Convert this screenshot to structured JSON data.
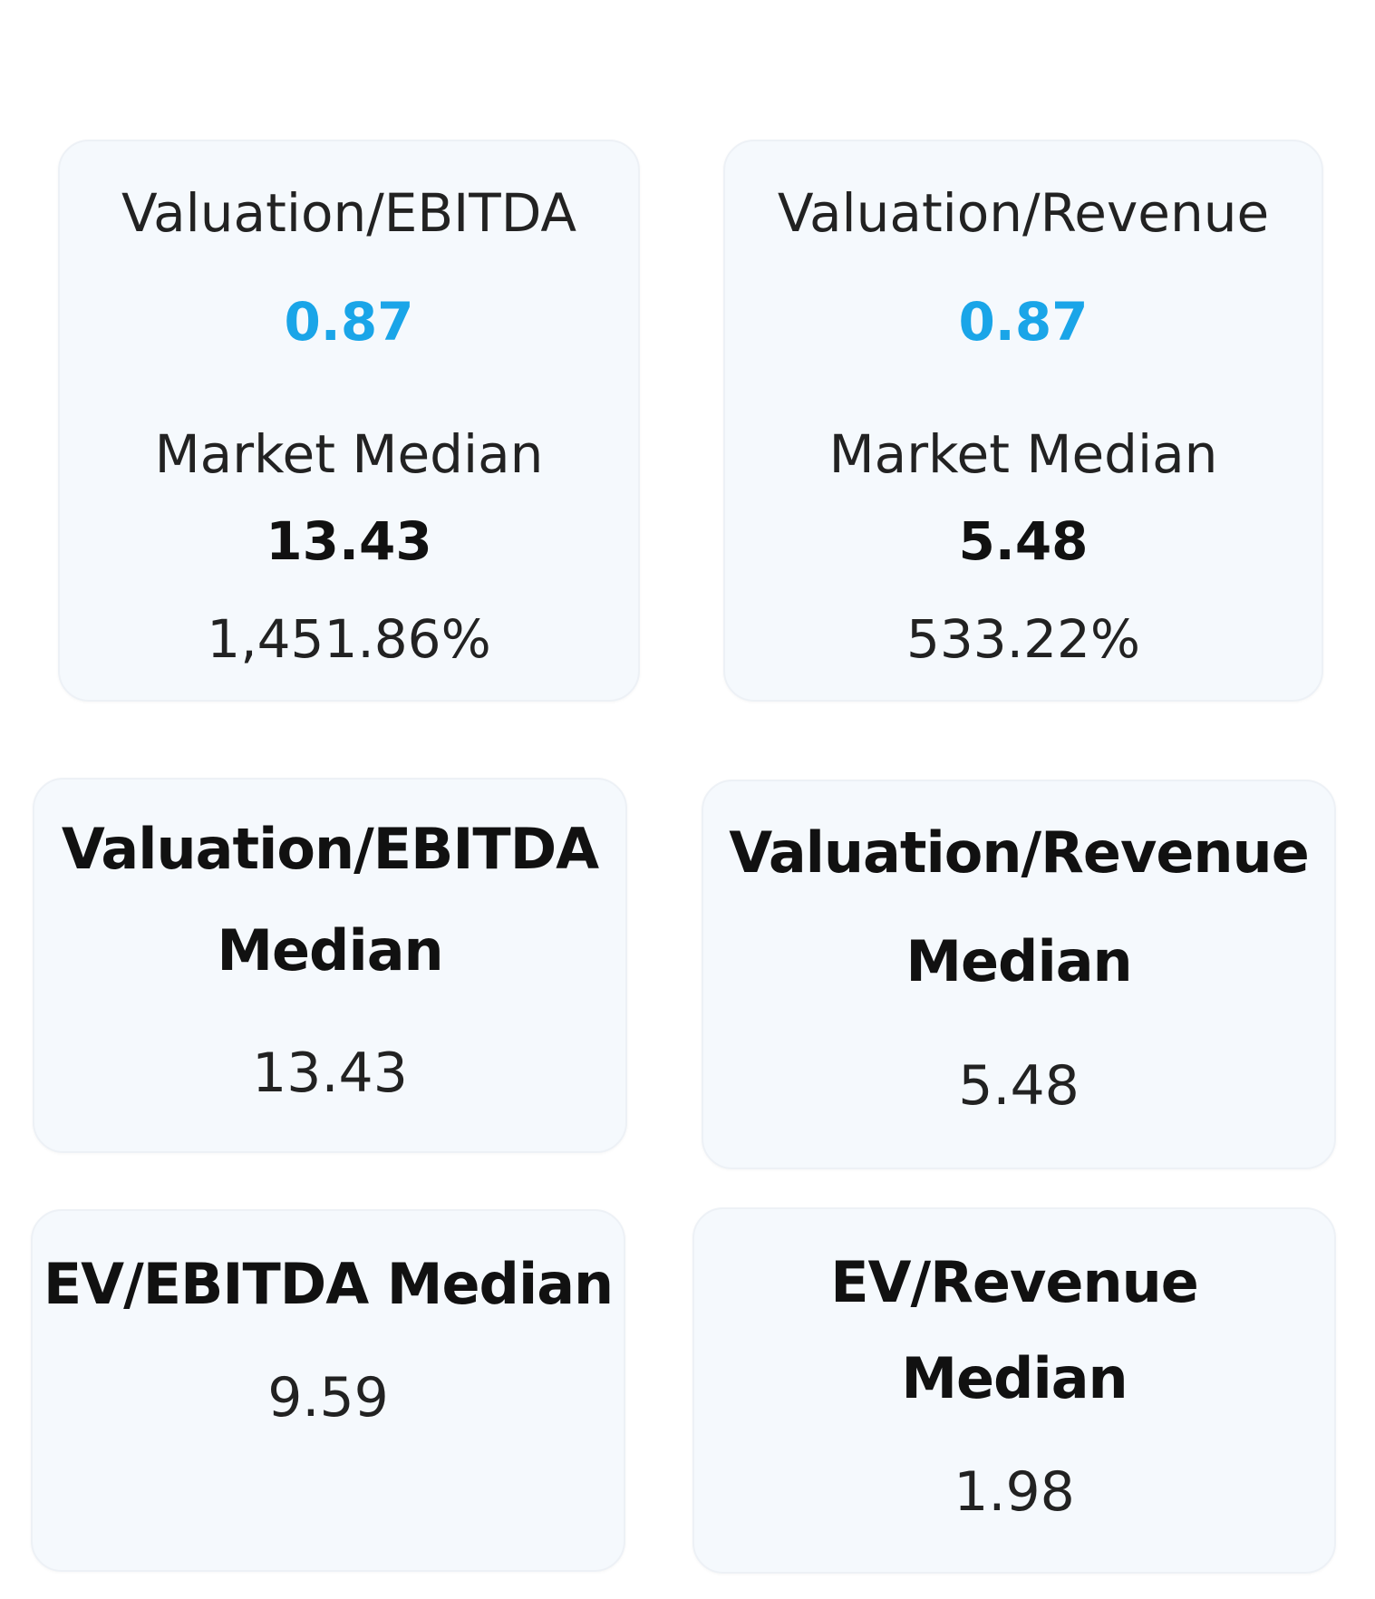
{
  "cards": {
    "valuation_ebitda": {
      "title": "Valuation/EBITDA",
      "value": "0.87",
      "market_median_label": "Market Median",
      "market_median_value": "13.43",
      "percent": "1,451.86%"
    },
    "valuation_revenue": {
      "title": "Valuation/Revenue",
      "value": "0.87",
      "market_median_label": "Market Median",
      "market_median_value": "5.48",
      "percent": "533.22%"
    },
    "valuation_ebitda_median": {
      "title_line1": "Valuation/EBITDA",
      "title_line2": "Median",
      "value": "13.43"
    },
    "valuation_revenue_median": {
      "title_line1": "Valuation/Revenue",
      "title_line2": "Median",
      "value": "5.48"
    },
    "ev_ebitda_median": {
      "title": "EV/EBITDA Median",
      "value": "9.59"
    },
    "ev_revenue_median": {
      "title_line1": "EV/Revenue",
      "title_line2": "Median",
      "value": "1.98"
    }
  },
  "colors": {
    "accent": "#1aa5e8",
    "card_background": "#f5f9fd",
    "card_border": "#edf1f6"
  }
}
